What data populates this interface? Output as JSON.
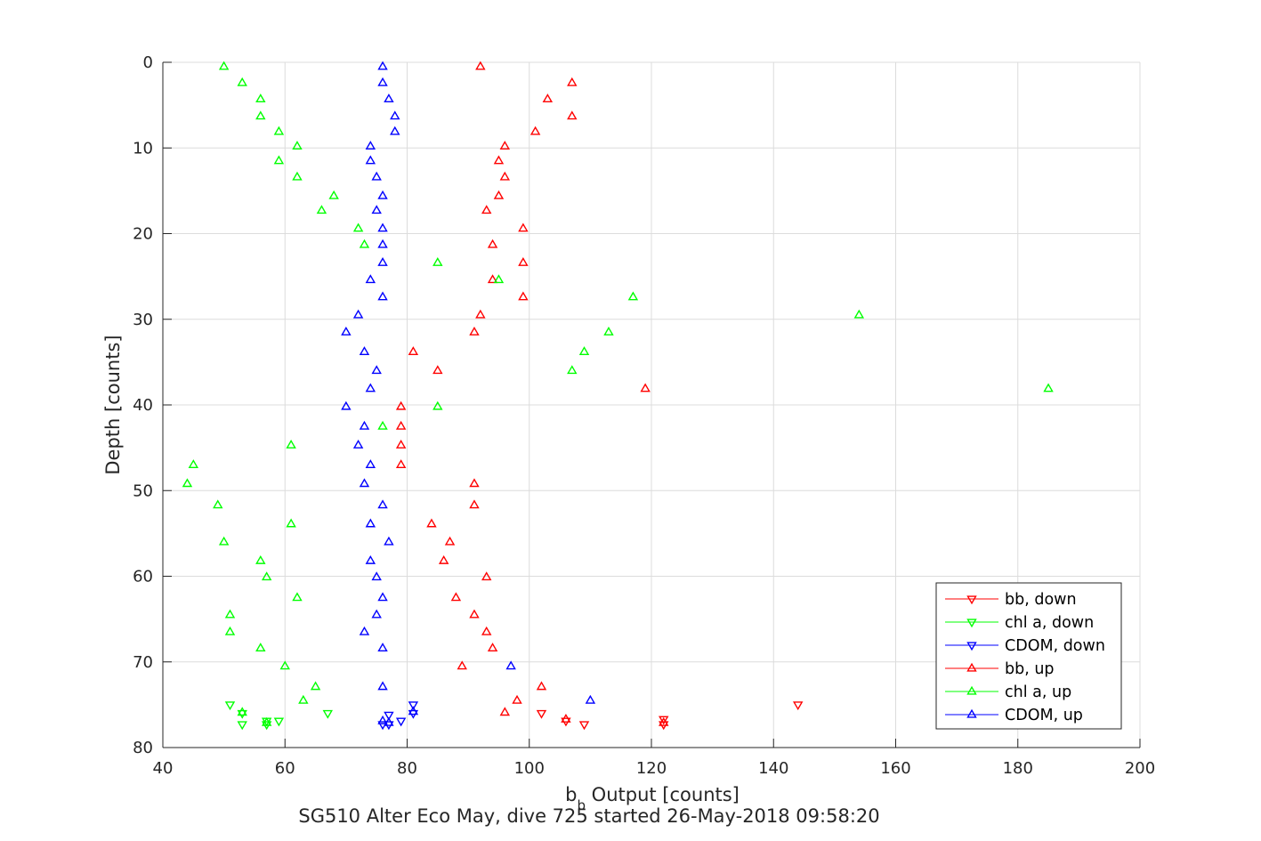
{
  "chart_data": {
    "type": "scatter",
    "title": "SG510 Alter Eco May, dive 725 started 26-May-2018 09:58:20",
    "xlabel_main": "b",
    "xlabel_sub": "b",
    "xlabel_rest": " Output [counts]",
    "ylabel": "Depth [counts]",
    "xlim": [
      40,
      200
    ],
    "ylim": [
      0,
      80
    ],
    "y_reversed": true,
    "grid": true,
    "legend_position": "bottom-right",
    "xticks": [
      "40",
      "60",
      "80",
      "100",
      "120",
      "140",
      "160",
      "180",
      "200"
    ],
    "yticks": [
      "0",
      "10",
      "20",
      "30",
      "40",
      "50",
      "60",
      "70",
      "80"
    ],
    "series": [
      {
        "name": "bb, down",
        "color": "#ff0000",
        "marker": "triangle-down",
        "points": [
          [
            144,
            75
          ],
          [
            102,
            76
          ],
          [
            106,
            76.9
          ],
          [
            109,
            77.3
          ],
          [
            122,
            76.7
          ],
          [
            122,
            77.3
          ]
        ]
      },
      {
        "name": "chl a, down",
        "color": "#00ff00",
        "marker": "triangle-down",
        "points": [
          [
            51,
            75
          ],
          [
            53,
            76
          ],
          [
            57,
            76.9
          ],
          [
            53,
            77.3
          ],
          [
            67,
            76
          ],
          [
            59,
            76.9
          ],
          [
            57,
            77.3
          ]
        ]
      },
      {
        "name": "CDOM, down",
        "color": "#0000ff",
        "marker": "triangle-down",
        "points": [
          [
            81,
            75
          ],
          [
            81,
            76
          ],
          [
            79,
            76.9
          ],
          [
            77,
            77.3
          ],
          [
            77,
            76.2
          ],
          [
            76,
            77.3
          ]
        ]
      },
      {
        "name": "bb, up",
        "color": "#ff0000",
        "marker": "triangle-up",
        "points": [
          [
            92,
            0.5
          ],
          [
            107,
            2.4
          ],
          [
            103,
            4.3
          ],
          [
            107,
            6.3
          ],
          [
            101,
            8.1
          ],
          [
            96,
            9.8
          ],
          [
            95,
            11.5
          ],
          [
            96,
            13.4
          ],
          [
            95,
            15.6
          ],
          [
            93,
            17.3
          ],
          [
            99,
            19.4
          ],
          [
            94,
            21.3
          ],
          [
            99,
            23.4
          ],
          [
            94,
            25.4
          ],
          [
            99,
            27.4
          ],
          [
            92,
            29.5
          ],
          [
            91,
            31.5
          ],
          [
            81,
            33.8
          ],
          [
            85,
            36
          ],
          [
            119,
            38.1
          ],
          [
            79,
            40.2
          ],
          [
            79,
            42.5
          ],
          [
            79,
            44.7
          ],
          [
            79,
            47
          ],
          [
            91,
            49.2
          ],
          [
            91,
            51.7
          ],
          [
            84,
            53.9
          ],
          [
            87,
            56
          ],
          [
            86,
            58.2
          ],
          [
            93,
            60.1
          ],
          [
            88,
            62.5
          ],
          [
            91,
            64.5
          ],
          [
            93,
            66.5
          ],
          [
            94,
            68.4
          ],
          [
            89,
            70.5
          ],
          [
            102,
            72.9
          ],
          [
            98,
            74.5
          ],
          [
            96,
            75.9
          ],
          [
            106,
            76.7
          ],
          [
            122,
            77.1
          ]
        ]
      },
      {
        "name": "chl a, up",
        "color": "#00ff00",
        "marker": "triangle-up",
        "points": [
          [
            50,
            0.5
          ],
          [
            53,
            2.4
          ],
          [
            56,
            4.3
          ],
          [
            56,
            6.3
          ],
          [
            59,
            8.1
          ],
          [
            62,
            9.8
          ],
          [
            59,
            11.5
          ],
          [
            62,
            13.4
          ],
          [
            68,
            15.6
          ],
          [
            66,
            17.3
          ],
          [
            72,
            19.4
          ],
          [
            73,
            21.3
          ],
          [
            85,
            23.4
          ],
          [
            95,
            25.4
          ],
          [
            117,
            27.4
          ],
          [
            154,
            29.5
          ],
          [
            113,
            31.5
          ],
          [
            109,
            33.8
          ],
          [
            107,
            36
          ],
          [
            185,
            38.1
          ],
          [
            85,
            40.2
          ],
          [
            76,
            42.5
          ],
          [
            61,
            44.7
          ],
          [
            45,
            47
          ],
          [
            44,
            49.2
          ],
          [
            49,
            51.7
          ],
          [
            61,
            53.9
          ],
          [
            50,
            56
          ],
          [
            56,
            58.2
          ],
          [
            57,
            60.1
          ],
          [
            62,
            62.5
          ],
          [
            51,
            64.5
          ],
          [
            51,
            66.5
          ],
          [
            56,
            68.4
          ],
          [
            60,
            70.5
          ],
          [
            65,
            72.9
          ],
          [
            63,
            74.5
          ],
          [
            53,
            75.9
          ],
          [
            57,
            77.1
          ]
        ]
      },
      {
        "name": "CDOM, up",
        "color": "#0000ff",
        "marker": "triangle-up",
        "points": [
          [
            76,
            0.5
          ],
          [
            76,
            2.4
          ],
          [
            77,
            4.3
          ],
          [
            78,
            6.3
          ],
          [
            78,
            8.1
          ],
          [
            74,
            9.8
          ],
          [
            74,
            11.5
          ],
          [
            75,
            13.4
          ],
          [
            76,
            15.6
          ],
          [
            75,
            17.3
          ],
          [
            76,
            19.4
          ],
          [
            76,
            21.3
          ],
          [
            76,
            23.4
          ],
          [
            74,
            25.4
          ],
          [
            76,
            27.4
          ],
          [
            72,
            29.5
          ],
          [
            70,
            31.5
          ],
          [
            73,
            33.8
          ],
          [
            75,
            36
          ],
          [
            74,
            38.1
          ],
          [
            70,
            40.2
          ],
          [
            73,
            42.5
          ],
          [
            72,
            44.7
          ],
          [
            74,
            47
          ],
          [
            73,
            49.2
          ],
          [
            76,
            51.7
          ],
          [
            74,
            53.9
          ],
          [
            77,
            56
          ],
          [
            74,
            58.2
          ],
          [
            75,
            60.1
          ],
          [
            76,
            62.5
          ],
          [
            75,
            64.5
          ],
          [
            73,
            66.5
          ],
          [
            76,
            68.4
          ],
          [
            97,
            70.5
          ],
          [
            76,
            72.9
          ],
          [
            110,
            74.5
          ],
          [
            81,
            75.8
          ],
          [
            76,
            76.9
          ],
          [
            77,
            77.1
          ]
        ]
      }
    ]
  }
}
